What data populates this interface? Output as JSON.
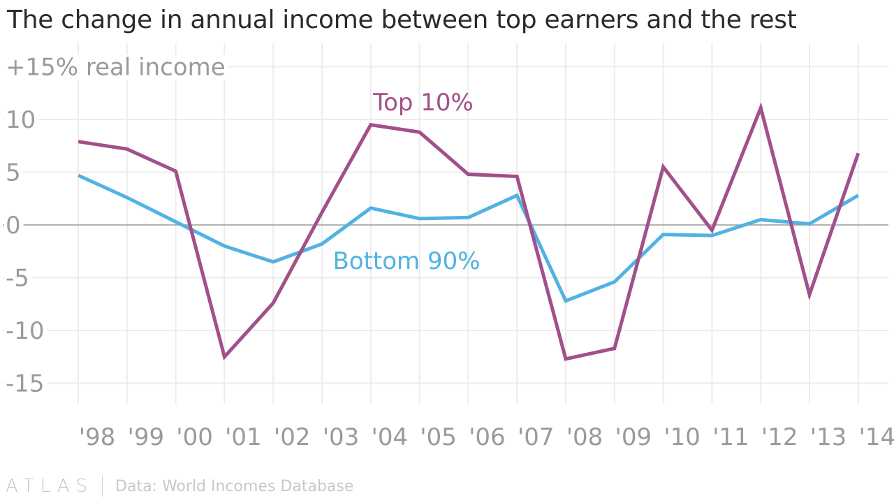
{
  "title": "The change in annual income between top earners and the rest",
  "footer": {
    "brand": "ATLAS",
    "source": "Data: World Incomes Database"
  },
  "colors": {
    "top": "#a1508a",
    "bottom": "#51b2e3",
    "grid": "#ececec",
    "zero_line": "#9a9a9a",
    "axis_text": "#9a9a9a"
  },
  "chart_data": {
    "type": "line",
    "title": "The change in annual income between top earners and the rest",
    "ylabel": "+15% real income",
    "xlabel": "",
    "ylim": [
      -17,
      17
    ],
    "y_ticks": [
      {
        "value": 15,
        "label": "+15% real income"
      },
      {
        "value": 10,
        "label": "10"
      },
      {
        "value": 5,
        "label": "5"
      },
      {
        "value": 0,
        "label": "0"
      },
      {
        "value": -5,
        "label": "-5"
      },
      {
        "value": -10,
        "label": "-10"
      },
      {
        "value": -15,
        "label": "-15"
      }
    ],
    "categories": [
      "'98",
      "'99",
      "'00",
      "'01",
      "'02",
      "'03",
      "'04",
      "'05",
      "'06",
      "'07",
      "'08",
      "'09",
      "'10",
      "'11",
      "'12",
      "'13",
      "'14"
    ],
    "grid": true,
    "series": [
      {
        "name": "Top 10%",
        "color": "#a1508a",
        "values": [
          7.9,
          7.2,
          5.1,
          -12.5,
          -7.4,
          1.2,
          9.5,
          8.8,
          4.8,
          4.6,
          -12.7,
          -11.7,
          5.5,
          -0.5,
          11.1,
          -6.6,
          6.8
        ]
      },
      {
        "name": "Bottom 90%",
        "color": "#51b2e3",
        "values": [
          4.7,
          2.6,
          0.3,
          -2.0,
          -3.5,
          -1.8,
          1.6,
          0.6,
          0.7,
          2.8,
          -7.2,
          -5.4,
          -0.9,
          -1.0,
          0.5,
          0.1,
          2.8
        ]
      }
    ]
  }
}
